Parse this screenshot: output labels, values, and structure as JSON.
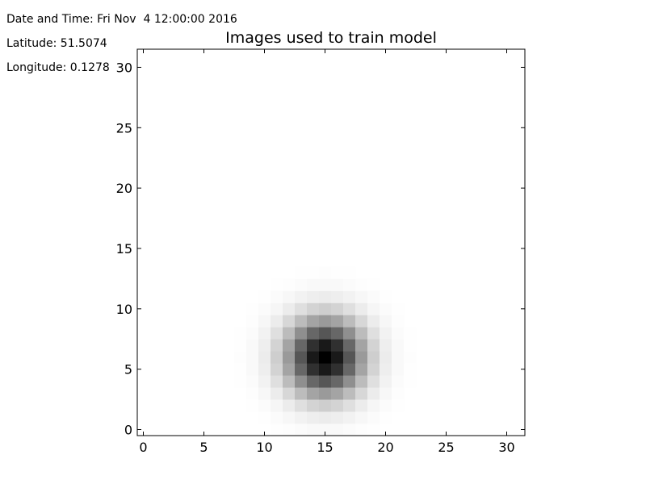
{
  "info": {
    "datetime": "Date and Time: Fri Nov  4 12:00:00 2016",
    "latitude": "Latitude: 51.5074",
    "longitude": "Longitude: 0.1278"
  },
  "chart_data": {
    "type": "heatmap",
    "title": "Images used to train model",
    "xlabel": "",
    "ylabel": "",
    "xlim": [
      -0.5,
      31.5
    ],
    "ylim": [
      -0.5,
      31.5
    ],
    "xticks": [
      0,
      5,
      10,
      15,
      20,
      25,
      30
    ],
    "yticks": [
      0,
      5,
      10,
      15,
      20,
      25,
      30
    ],
    "grid": false,
    "colormap": "gray_r",
    "colors": {
      "low": "#ffffff",
      "high": "#000000"
    },
    "peak": {
      "x": 15,
      "y": 6
    },
    "sigma": 2.2,
    "value_range": [
      0,
      1
    ]
  }
}
